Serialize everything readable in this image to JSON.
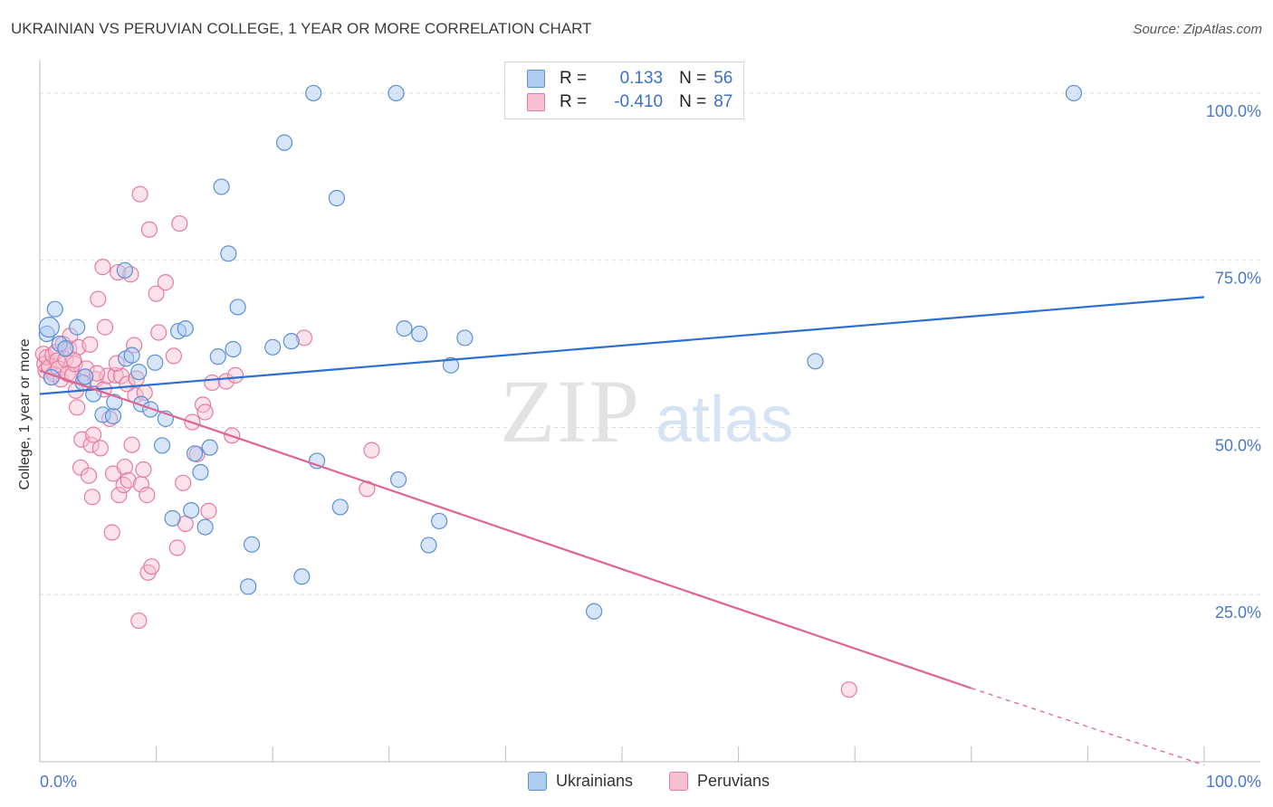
{
  "title": "UKRAINIAN VS PERUVIAN COLLEGE, 1 YEAR OR MORE CORRELATION CHART",
  "source": "Source: ZipAtlas.com",
  "watermark": {
    "zip": "ZIP",
    "atlas": "atlas"
  },
  "legend": {
    "r_label": "R =",
    "n_label": "N =",
    "rows": [
      {
        "r": "0.133",
        "n": "56"
      },
      {
        "r": "-0.410",
        "n": "87"
      }
    ]
  },
  "bottom_legend": [
    "Ukrainians",
    "Peruvians"
  ],
  "colors": {
    "blue_fill": "#aecbf0",
    "blue_stroke": "#5b8fd6",
    "blue_line": "#2b6fcf",
    "pink_fill": "#f6bfd2",
    "pink_stroke": "#e87aa0",
    "pink_line": "#e0648f",
    "grid": "#dcdcdc",
    "tick_text": "#4a78c8"
  },
  "chart_data": {
    "type": "scatter",
    "title": "UKRAINIAN VS PERUVIAN COLLEGE, 1 YEAR OR MORE CORRELATION CHART",
    "xlabel": "",
    "ylabel": "College, 1 year or more",
    "xlim": [
      0,
      100
    ],
    "ylim": [
      0,
      105
    ],
    "x_tick_labels": [
      "0.0%",
      "100.0%"
    ],
    "y_ticks": [
      25,
      50,
      75,
      100
    ],
    "y_tick_labels": [
      "25.0%",
      "50.0%",
      "75.0%",
      "100.0%"
    ],
    "series": [
      {
        "name": "Ukrainians",
        "r": 0.133,
        "n": 56,
        "trend": {
          "x0": 0,
          "y0": 55.0,
          "x1": 100,
          "y1": 69.5
        },
        "points": [
          [
            0.6,
            64.0
          ],
          [
            0.8,
            65.0
          ],
          [
            1.3,
            67.7
          ],
          [
            1.7,
            62.5
          ],
          [
            2.2,
            61.8
          ],
          [
            3.2,
            65.0
          ],
          [
            3.7,
            56.7
          ],
          [
            3.9,
            57.6
          ],
          [
            4.6,
            55.0
          ],
          [
            5.4,
            51.9
          ],
          [
            6.3,
            51.7
          ],
          [
            6.4,
            53.8
          ],
          [
            7.3,
            73.5
          ],
          [
            7.4,
            60.3
          ],
          [
            7.9,
            60.8
          ],
          [
            8.5,
            58.3
          ],
          [
            8.7,
            53.5
          ],
          [
            9.5,
            52.7
          ],
          [
            9.9,
            59.7
          ],
          [
            10.5,
            47.3
          ],
          [
            10.8,
            51.3
          ],
          [
            11.4,
            36.4
          ],
          [
            11.9,
            64.4
          ],
          [
            12.5,
            64.8
          ],
          [
            13.0,
            37.6
          ],
          [
            13.3,
            46.1
          ],
          [
            13.8,
            43.3
          ],
          [
            14.2,
            35.1
          ],
          [
            14.6,
            47.0
          ],
          [
            15.3,
            60.6
          ],
          [
            15.6,
            86.0
          ],
          [
            16.2,
            76.0
          ],
          [
            16.6,
            61.7
          ],
          [
            17.0,
            68.0
          ],
          [
            17.9,
            26.2
          ],
          [
            18.2,
            32.5
          ],
          [
            20.0,
            62.0
          ],
          [
            21.0,
            92.6
          ],
          [
            21.6,
            62.9
          ],
          [
            22.5,
            27.7
          ],
          [
            23.5,
            100.0
          ],
          [
            23.8,
            45.0
          ],
          [
            25.5,
            84.3
          ],
          [
            25.8,
            38.1
          ],
          [
            30.6,
            100.0
          ],
          [
            30.8,
            42.2
          ],
          [
            31.3,
            64.8
          ],
          [
            32.6,
            64.0
          ],
          [
            33.4,
            32.4
          ],
          [
            34.3,
            36.0
          ],
          [
            35.3,
            59.3
          ],
          [
            36.5,
            63.4
          ],
          [
            47.6,
            22.5
          ],
          [
            66.6,
            59.9
          ],
          [
            88.8,
            100.0
          ],
          [
            1.0,
            57.5
          ]
        ]
      },
      {
        "name": "Peruvians",
        "r": -0.41,
        "n": 87,
        "trend": {
          "x0": 0,
          "y0": 58.5,
          "x1": 80.0,
          "y1": 11.0,
          "dash_x1": 100,
          "dash_y1": -0.5
        },
        "points": [
          [
            0.3,
            61.0
          ],
          [
            0.4,
            59.5
          ],
          [
            0.5,
            58.5
          ],
          [
            0.6,
            60.5
          ],
          [
            0.8,
            59.0
          ],
          [
            1.0,
            57.5
          ],
          [
            1.1,
            60.8
          ],
          [
            1.2,
            58.0
          ],
          [
            1.4,
            61.3
          ],
          [
            1.5,
            60.0
          ],
          [
            1.6,
            58.8
          ],
          [
            1.8,
            57.2
          ],
          [
            2.0,
            62.5
          ],
          [
            2.2,
            60.2
          ],
          [
            2.4,
            58.0
          ],
          [
            2.5,
            61.8
          ],
          [
            2.6,
            63.7
          ],
          [
            2.8,
            57.8
          ],
          [
            3.0,
            59.5
          ],
          [
            3.1,
            55.5
          ],
          [
            3.2,
            53.0
          ],
          [
            3.3,
            62.0
          ],
          [
            3.5,
            44.0
          ],
          [
            3.6,
            48.2
          ],
          [
            3.8,
            57.5
          ],
          [
            4.0,
            58.8
          ],
          [
            4.2,
            42.8
          ],
          [
            4.3,
            62.4
          ],
          [
            4.4,
            47.4
          ],
          [
            4.5,
            39.6
          ],
          [
            4.6,
            48.9
          ],
          [
            4.8,
            57.2
          ],
          [
            5.0,
            69.2
          ],
          [
            5.2,
            46.9
          ],
          [
            5.4,
            74.0
          ],
          [
            5.5,
            55.7
          ],
          [
            5.6,
            65.0
          ],
          [
            5.8,
            57.7
          ],
          [
            6.0,
            51.3
          ],
          [
            6.2,
            34.3
          ],
          [
            6.3,
            43.1
          ],
          [
            6.5,
            57.8
          ],
          [
            6.7,
            73.2
          ],
          [
            6.8,
            39.9
          ],
          [
            7.0,
            57.7
          ],
          [
            7.2,
            41.4
          ],
          [
            7.3,
            44.1
          ],
          [
            7.5,
            56.5
          ],
          [
            7.6,
            42.1
          ],
          [
            7.8,
            72.9
          ],
          [
            7.9,
            47.4
          ],
          [
            8.1,
            62.3
          ],
          [
            8.2,
            54.8
          ],
          [
            8.3,
            57.3
          ],
          [
            8.5,
            21.1
          ],
          [
            8.6,
            84.9
          ],
          [
            8.7,
            41.5
          ],
          [
            8.9,
            43.7
          ],
          [
            9.2,
            39.9
          ],
          [
            9.3,
            28.3
          ],
          [
            9.4,
            79.6
          ],
          [
            9.6,
            29.2
          ],
          [
            10.0,
            70.0
          ],
          [
            10.2,
            64.2
          ],
          [
            10.8,
            71.7
          ],
          [
            11.5,
            60.7
          ],
          [
            11.8,
            32.0
          ],
          [
            12.0,
            80.5
          ],
          [
            12.3,
            41.7
          ],
          [
            12.5,
            35.6
          ],
          [
            13.1,
            50.8
          ],
          [
            13.5,
            46.0
          ],
          [
            14.0,
            53.4
          ],
          [
            14.2,
            52.3
          ],
          [
            14.5,
            37.5
          ],
          [
            14.8,
            56.7
          ],
          [
            16.0,
            56.9
          ],
          [
            16.5,
            48.8
          ],
          [
            16.8,
            57.8
          ],
          [
            22.7,
            63.4
          ],
          [
            28.1,
            40.8
          ],
          [
            28.5,
            46.6
          ],
          [
            4.9,
            58.1
          ],
          [
            2.9,
            60.1
          ],
          [
            6.6,
            59.6
          ],
          [
            9.0,
            55.2
          ],
          [
            69.5,
            10.8
          ]
        ]
      }
    ]
  }
}
